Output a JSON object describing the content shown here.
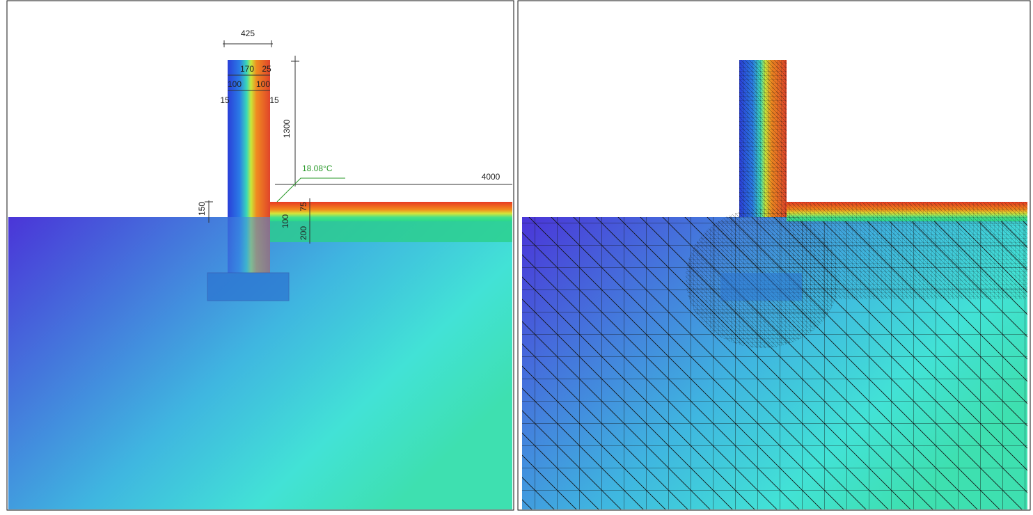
{
  "left_panel": {
    "dimensions": {
      "total_width": "425",
      "insulation": "170",
      "finish": "25",
      "inner_leaf": "100",
      "outer_leaf": "100",
      "inner_render": "15",
      "outer_render": "15",
      "wall_height": "1300",
      "floor_length": "4000",
      "step": "150",
      "floor_layers": [
        "75",
        "100",
        "200"
      ]
    },
    "temperature_label": "18.08°C"
  }
}
